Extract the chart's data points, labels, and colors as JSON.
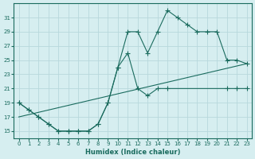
{
  "xlabel": "Humidex (Indice chaleur)",
  "bg_color": "#d6eef0",
  "grid_color": "#b8d8dc",
  "line_color": "#1a6b5e",
  "xlim": [
    -0.5,
    23.5
  ],
  "ylim": [
    14,
    33
  ],
  "xticks": [
    0,
    1,
    2,
    3,
    4,
    5,
    6,
    7,
    8,
    9,
    10,
    11,
    12,
    13,
    14,
    15,
    16,
    17,
    18,
    19,
    20,
    21,
    22,
    23
  ],
  "yticks": [
    15,
    17,
    19,
    21,
    23,
    25,
    27,
    29,
    31
  ],
  "line1_x": [
    0,
    1,
    2,
    3,
    4,
    5,
    6,
    7,
    8,
    9,
    10,
    11,
    12,
    13,
    14,
    15,
    16,
    17,
    18,
    19,
    20,
    21,
    22,
    23
  ],
  "line1_y": [
    19,
    18,
    17,
    16,
    15,
    15,
    15,
    15,
    16,
    19,
    24,
    29,
    29,
    26,
    29,
    32,
    31,
    30,
    29,
    29,
    29,
    25,
    25,
    24.5
  ],
  "line2_x": [
    0,
    1,
    2,
    3,
    4,
    5,
    6,
    7,
    8,
    9,
    10,
    11,
    12,
    13,
    14,
    15,
    21,
    22,
    23
  ],
  "line2_y": [
    19,
    18,
    17,
    16,
    15,
    15,
    15,
    15,
    16,
    19,
    24,
    26,
    21,
    20,
    21,
    21,
    21,
    21,
    21
  ],
  "line3_x": [
    0,
    23
  ],
  "line3_y": [
    17,
    24.5
  ],
  "markersize": 2.5
}
